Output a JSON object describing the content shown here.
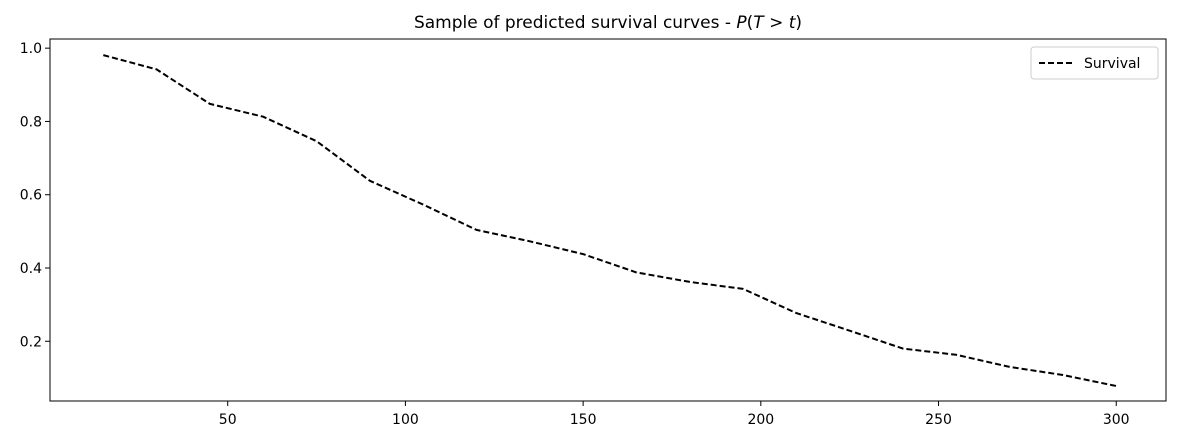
{
  "chart_data": {
    "type": "line",
    "title": "Sample of predicted survival curves - P(T > t)",
    "title_parts": {
      "prefix": "Sample of predicted survival curves - ",
      "P": "P",
      "open": "(",
      "T": "T",
      "op": " > ",
      "t": "t",
      "close": ")"
    },
    "xlabel": "",
    "ylabel": "",
    "xlim": [
      0,
      314
    ],
    "ylim": [
      0.037,
      1.025
    ],
    "x_ticks": [
      50,
      100,
      150,
      200,
      250,
      300
    ],
    "x_tick_labels": [
      "50",
      "100",
      "150",
      "200",
      "250",
      "300"
    ],
    "y_ticks": [
      0.2,
      0.4,
      0.6,
      0.8,
      1.0
    ],
    "y_tick_labels": [
      "0.2",
      "0.4",
      "0.6",
      "0.8",
      "1.0"
    ],
    "grid": false,
    "legend": {
      "position": "top-right"
    },
    "series": [
      {
        "name": "Survival",
        "color": "#000000",
        "line_style": "dashed",
        "x": [
          15,
          30,
          45,
          60,
          75,
          90,
          105,
          120,
          135,
          150,
          165,
          180,
          195,
          210,
          225,
          240,
          255,
          270,
          285,
          300
        ],
        "y": [
          0.981,
          0.942,
          0.848,
          0.813,
          0.746,
          0.638,
          0.573,
          0.504,
          0.473,
          0.438,
          0.388,
          0.362,
          0.343,
          0.277,
          0.229,
          0.18,
          0.163,
          0.13,
          0.108,
          0.078
        ]
      }
    ]
  }
}
